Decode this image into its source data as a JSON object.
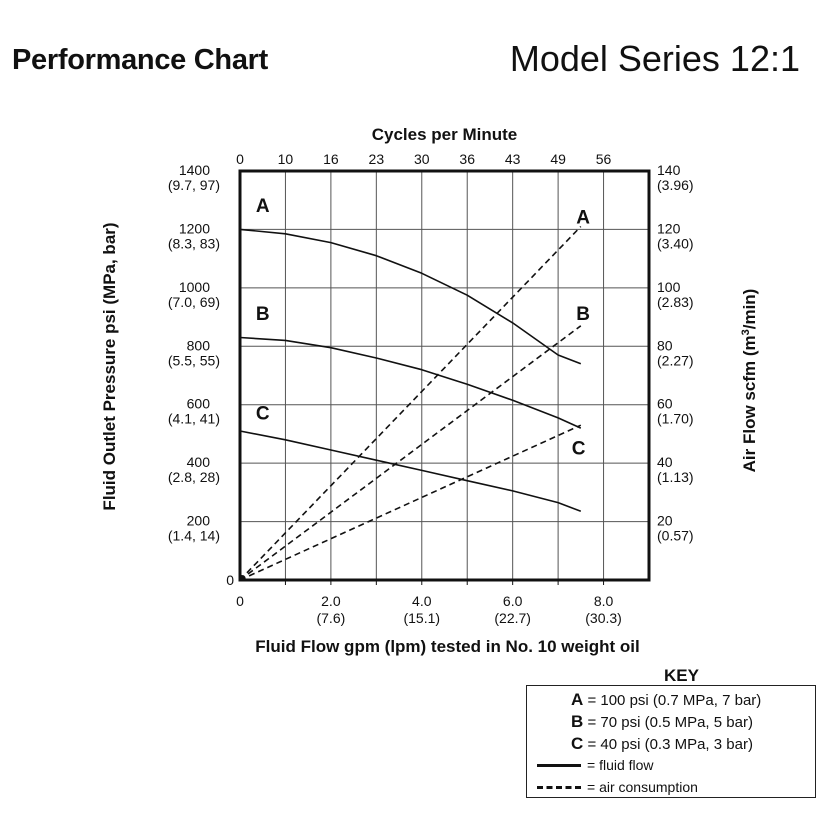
{
  "header": {
    "title": "Performance Chart",
    "model": "Model Series 12:1"
  },
  "chart_data": {
    "type": "line",
    "title": "Cycles per Minute",
    "xlabel": "Fluid Flow gpm (lpm) tested in No. 10 weight oil",
    "ylabel_left": "Fluid Outlet Pressure psi (MPa, bar)",
    "ylabel_right_prefix": "Air Flow scfm (m",
    "ylabel_right_sup": "3",
    "ylabel_right_suffix": "/min)",
    "xlim": [
      0,
      9.0
    ],
    "ylim_left": [
      0,
      1400
    ],
    "ylim_right": [
      0,
      140
    ],
    "grid": true,
    "x_ticks": [
      {
        "value": 0,
        "label": "0",
        "sub": ""
      },
      {
        "value": 2.0,
        "label": "2.0",
        "sub": "(7.6)"
      },
      {
        "value": 4.0,
        "label": "4.0",
        "sub": "(15.1)"
      },
      {
        "value": 6.0,
        "label": "6.0",
        "sub": "(22.7)"
      },
      {
        "value": 8.0,
        "label": "8.0",
        "sub": "(30.3)"
      }
    ],
    "top_ticks": [
      {
        "value": 0,
        "label": "0"
      },
      {
        "value": 1.0,
        "label": "10"
      },
      {
        "value": 2.0,
        "label": "16"
      },
      {
        "value": 3.0,
        "label": "23"
      },
      {
        "value": 4.0,
        "label": "30"
      },
      {
        "value": 5.0,
        "label": "36"
      },
      {
        "value": 6.0,
        "label": "43"
      },
      {
        "value": 7.0,
        "label": "49"
      },
      {
        "value": 8.0,
        "label": "56"
      }
    ],
    "left_ticks": [
      {
        "value": 0,
        "label": "0",
        "sub": ""
      },
      {
        "value": 200,
        "label": "200",
        "sub": "(1.4, 14)"
      },
      {
        "value": 400,
        "label": "400",
        "sub": "(2.8, 28)"
      },
      {
        "value": 600,
        "label": "600",
        "sub": "(4.1, 41)"
      },
      {
        "value": 800,
        "label": "800",
        "sub": "(5.5, 55)"
      },
      {
        "value": 1000,
        "label": "1000",
        "sub": "(7.0, 69)"
      },
      {
        "value": 1200,
        "label": "1200",
        "sub": "(8.3, 83)"
      },
      {
        "value": 1400,
        "label": "1400",
        "sub": "(9.7, 97)"
      }
    ],
    "right_ticks": [
      {
        "value": 20,
        "label": "20",
        "sub": "(0.57)"
      },
      {
        "value": 40,
        "label": "40",
        "sub": "(1.13)"
      },
      {
        "value": 60,
        "label": "60",
        "sub": "(1.70)"
      },
      {
        "value": 80,
        "label": "80",
        "sub": "(2.27)"
      },
      {
        "value": 100,
        "label": "100",
        "sub": "(2.83)"
      },
      {
        "value": 120,
        "label": "120",
        "sub": "(3.40)"
      },
      {
        "value": 140,
        "label": "140",
        "sub": "(3.96)"
      }
    ],
    "series": [
      {
        "name": "A",
        "kind": "fluid flow",
        "axis": "left",
        "x": [
          0,
          1,
          2,
          3,
          4,
          5,
          6,
          7,
          7.5
        ],
        "y": [
          1200,
          1185,
          1155,
          1110,
          1050,
          975,
          880,
          770,
          740
        ]
      },
      {
        "name": "B",
        "kind": "fluid flow",
        "axis": "left",
        "x": [
          0,
          1,
          2,
          3,
          4,
          5,
          6,
          7,
          7.5
        ],
        "y": [
          830,
          820,
          795,
          760,
          720,
          670,
          615,
          555,
          520
        ]
      },
      {
        "name": "C",
        "kind": "fluid flow",
        "axis": "left",
        "x": [
          0,
          1,
          2,
          3,
          4,
          5,
          6,
          7,
          7.5
        ],
        "y": [
          510,
          480,
          445,
          410,
          375,
          340,
          305,
          265,
          235
        ]
      },
      {
        "name": "A",
        "kind": "air consumption",
        "axis": "right",
        "x": [
          0,
          7.5
        ],
        "y": [
          0,
          121
        ]
      },
      {
        "name": "B",
        "kind": "air consumption",
        "axis": "right",
        "x": [
          0,
          7.5
        ],
        "y": [
          0,
          87
        ]
      },
      {
        "name": "C",
        "kind": "air consumption",
        "axis": "right",
        "x": [
          0,
          7.5
        ],
        "y": [
          0,
          53
        ]
      }
    ],
    "curve_labels": [
      {
        "text": "A",
        "x": 0.5,
        "y": 1260,
        "axis": "left"
      },
      {
        "text": "B",
        "x": 0.5,
        "y": 890,
        "axis": "left"
      },
      {
        "text": "C",
        "x": 0.5,
        "y": 550,
        "axis": "left"
      },
      {
        "text": "A",
        "x": 7.55,
        "y": 122,
        "axis": "right"
      },
      {
        "text": "B",
        "x": 7.55,
        "y": 89,
        "axis": "right"
      },
      {
        "text": "C",
        "x": 7.45,
        "y": 43,
        "axis": "right"
      }
    ]
  },
  "key": {
    "title": "KEY",
    "items": [
      {
        "letter": "A",
        "text": " = 100 psi (0.7 MPa, 7 bar)"
      },
      {
        "letter": "B",
        "text": " = 70 psi (0.5 MPa, 5 bar)"
      },
      {
        "letter": "C",
        "text": " = 40 psi (0.3 MPa, 3 bar)"
      }
    ],
    "fluid_flow_label": "= fluid flow",
    "air_label": "= air consumption"
  }
}
